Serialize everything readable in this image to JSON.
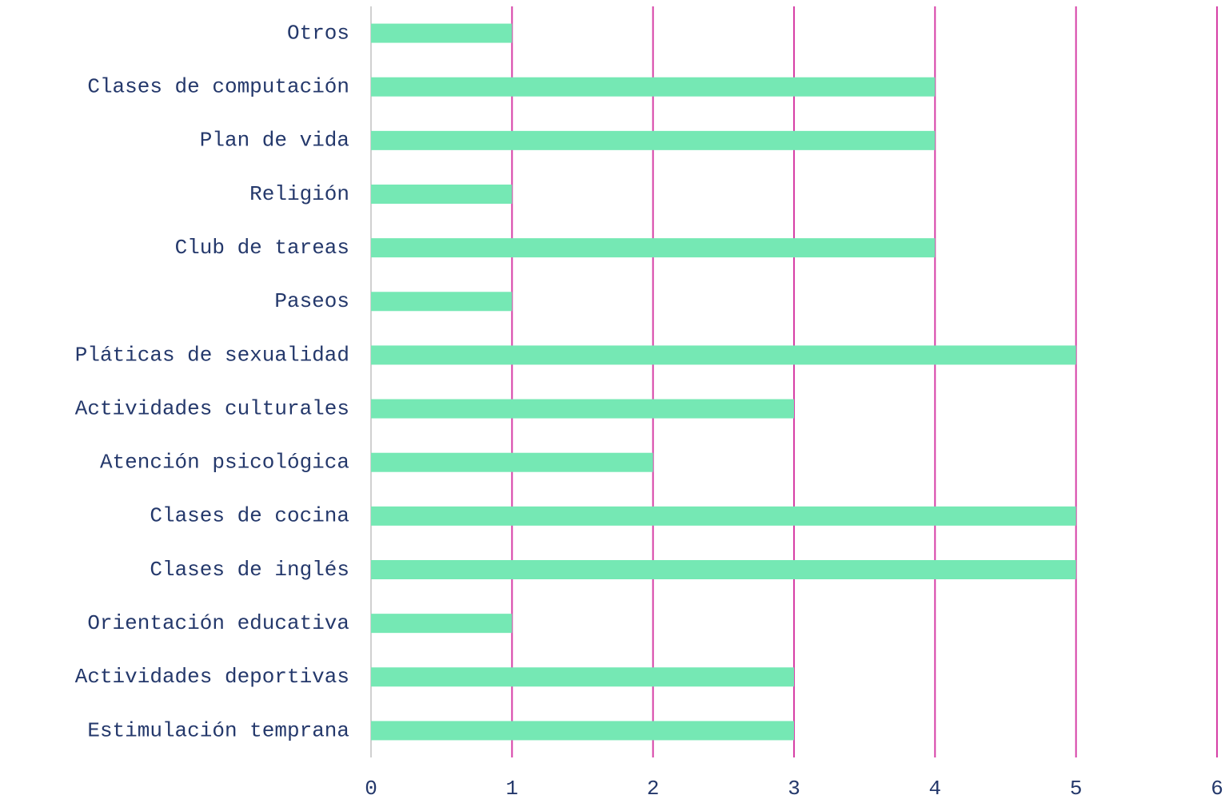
{
  "chart_data": {
    "type": "barh",
    "categories": [
      "Otros",
      "Clases de computación",
      "Plan de vida",
      "Religión",
      "Club de tareas",
      "Paseos",
      "Pláticas de sexualidad",
      "Actividades culturales",
      "Atención psicológica",
      "Clases de cocina",
      "Clases de inglés",
      "Orientación educativa",
      "Actividades deportivas",
      "Estimulación temprana"
    ],
    "values": [
      1,
      4,
      4,
      1,
      4,
      1,
      5,
      3,
      2,
      5,
      5,
      1,
      3,
      3
    ],
    "color": "#75e8b4",
    "xlim": [
      0,
      6
    ],
    "xticks": [
      0,
      1,
      2,
      3,
      4,
      5,
      6
    ],
    "grid": true,
    "grid_color": "#d63fa6"
  }
}
